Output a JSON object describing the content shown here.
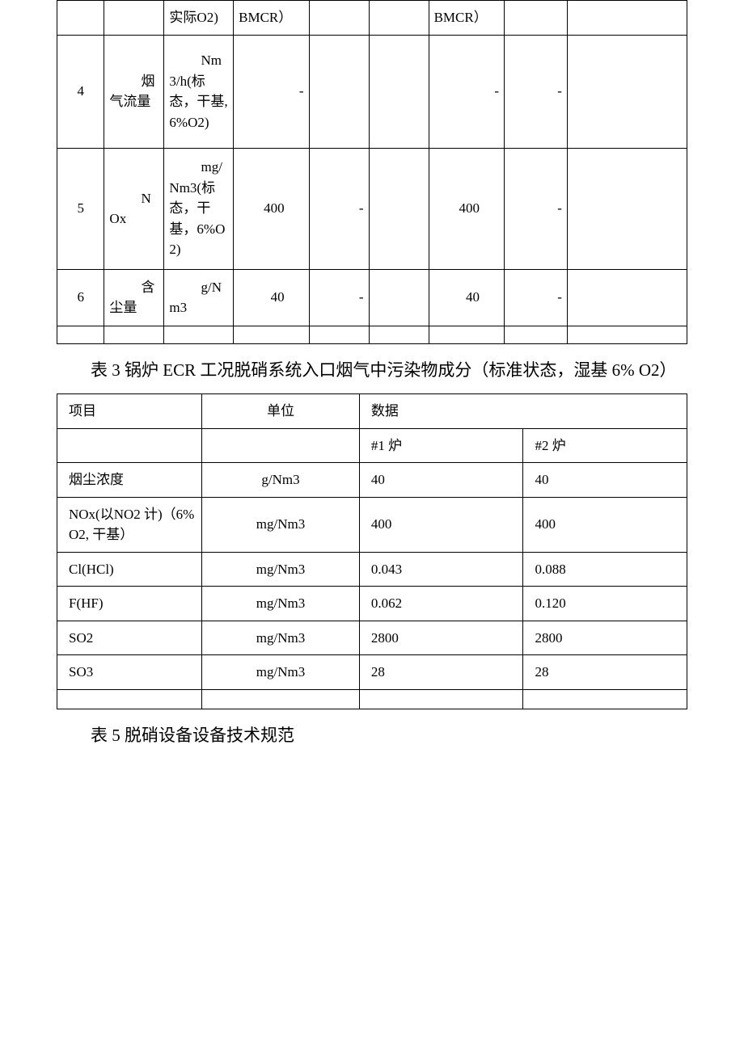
{
  "table1": {
    "rows": [
      {
        "c2": "实际O2)",
        "c3": "BMCR）",
        "c6": "BMCR）"
      },
      {
        "c0": "4",
        "c1": "烟气流量",
        "c2": "Nm3/h(标态，干基, 6%O2)",
        "c3": "-",
        "c4": "",
        "c5": "",
        "c6": "-",
        "c7": "-",
        "c8": ""
      },
      {
        "c0": "5",
        "c1": "NOx",
        "c2": "mg/Nm3(标态，干基，6%O2)",
        "c3": "400",
        "c4": "-",
        "c5": "",
        "c6": "400",
        "c7": "-",
        "c8": ""
      },
      {
        "c0": "6",
        "c1": "含尘量",
        "c2": "g/Nm3",
        "c3": "40",
        "c4": "-",
        "c5": "",
        "c6": "40",
        "c7": "-",
        "c8": ""
      }
    ]
  },
  "caption1": "表 3 锅炉 ECR 工况脱硝系统入口烟气中污染物成分（标准状态，湿基 6% O2）",
  "table2": {
    "header": {
      "c0": "项目",
      "c1": "单位",
      "c2": "数据"
    },
    "sub": {
      "c2": "#1 炉",
      "c3": "#2 炉"
    },
    "rows": [
      {
        "c0": "烟尘浓度",
        "c1": "g/Nm3",
        "c2": "40",
        "c3": "40"
      },
      {
        "c0": "NOx(以NO2 计)（6%O2, 干基）",
        "c1": "mg/Nm3",
        "c2": "400",
        "c3": "400"
      },
      {
        "c0": "Cl(HCl)",
        "c1": "mg/Nm3",
        "c2": "0.043",
        "c3": "0.088"
      },
      {
        "c0": "F(HF)",
        "c1": "mg/Nm3",
        "c2": "0.062",
        "c3": "0.120"
      },
      {
        "c0": "SO2",
        "c1": "mg/Nm3",
        "c2": "2800",
        "c3": "2800"
      },
      {
        "c0": "SO3",
        "c1": "mg/Nm3",
        "c2": "28",
        "c3": "28"
      }
    ]
  },
  "caption2": "表 5 脱硝设备设备技术规范"
}
